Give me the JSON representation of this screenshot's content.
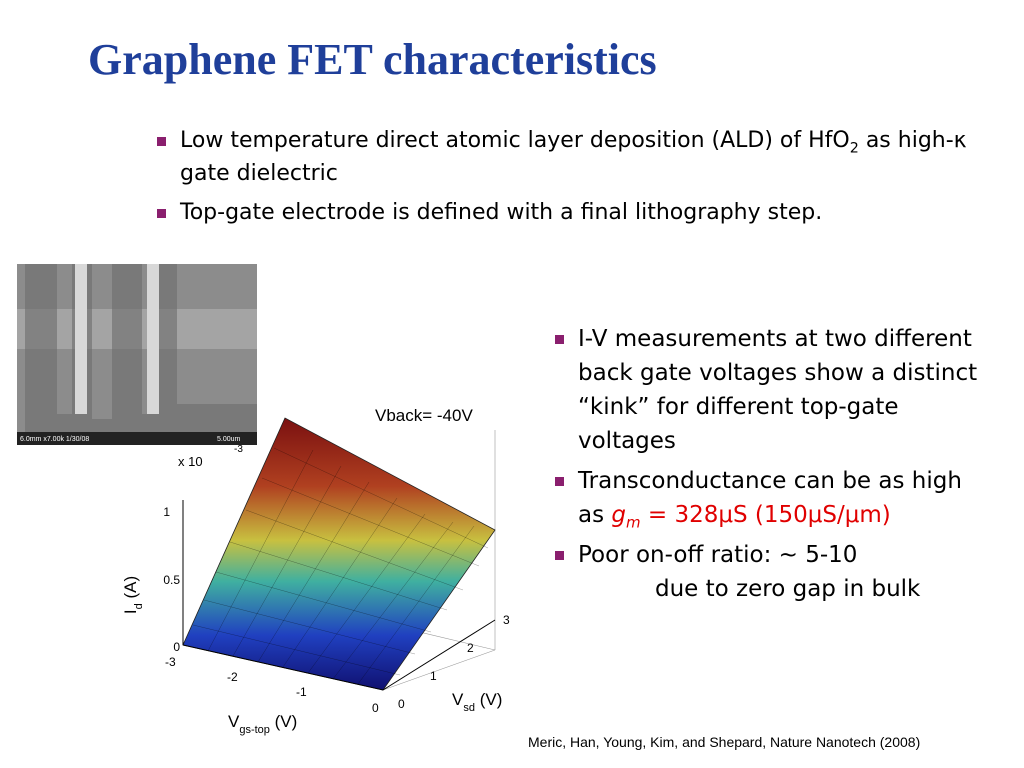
{
  "title": "Graphene FET characteristics",
  "top_bullets": [
    {
      "parts": [
        "Low temperature direct atomic layer deposition (ALD) of HfO",
        "2",
        " as high-κ gate dielectric"
      ]
    },
    {
      "parts": [
        "Top-gate electrode is defined with a final lithography step."
      ]
    }
  ],
  "sem_image": {
    "info": "6.0mm x7.00k 1/30/08",
    "scale": "5.00um"
  },
  "plot": {
    "title": "Vback= -40V",
    "multiplier": "x 10",
    "multiplier_exponent": "-3",
    "z_ticks": [
      "0",
      "0.5",
      "1"
    ],
    "z_label": [
      "I",
      "d",
      " (A)"
    ],
    "x_ticks": [
      "-3",
      "-2",
      "-1",
      "0"
    ],
    "x_label": [
      "V",
      "gs-top",
      " (V)"
    ],
    "y_ticks": [
      "0",
      "1",
      "2",
      "3"
    ],
    "y_label": [
      "V",
      "sd",
      " (V)"
    ]
  },
  "right_bullets": [
    {
      "text": "I-V measurements at two different back gate voltages show a distinct “kink” for different top-gate voltages"
    },
    {
      "text": "Transconductance can be as high as ",
      "symbol": "g",
      "symbol_sub": "m",
      "highlight": " = 328μS (150μS/μm)"
    },
    {
      "text": "Poor on-off ratio: ~ 5-10",
      "continuation": "due to zero gap in bulk"
    }
  ],
  "citation": "Meric, Han, Young, Kim, and Shepard, Nature Nanotech (2008)"
}
